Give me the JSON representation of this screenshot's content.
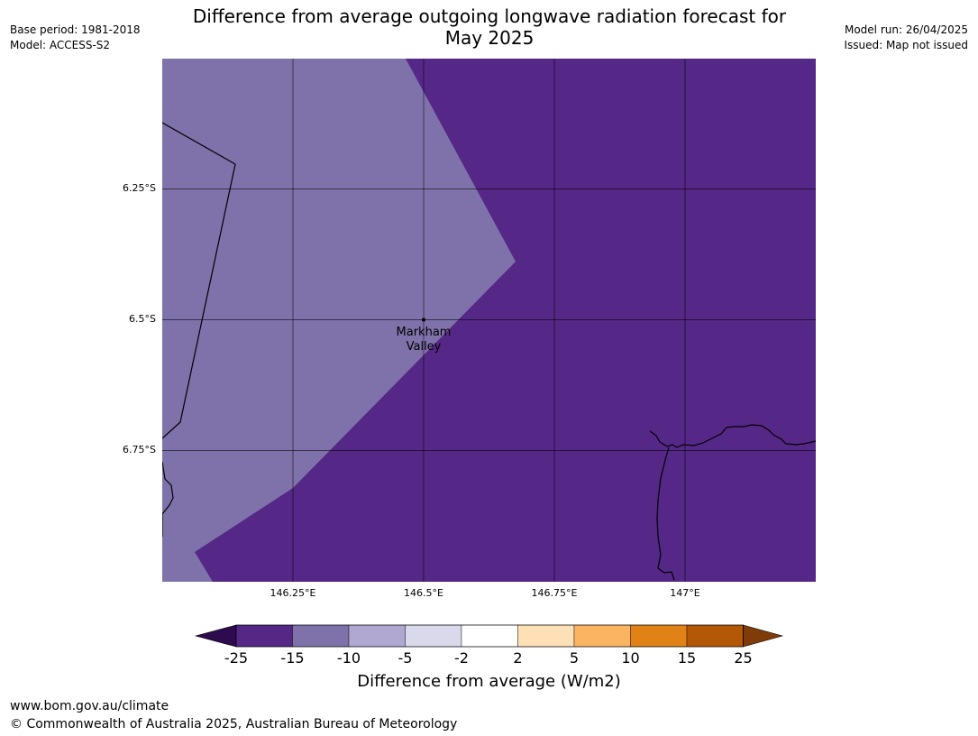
{
  "header": {
    "title_line1": "Difference from average outgoing longwave radiation forecast for",
    "title_line2": "May 2025",
    "base_period": "Base period: 1981-2018",
    "model": "Model: ACCESS-S2",
    "model_run": "Model run: 26/04/2025",
    "issued": "Issued: Map not issued"
  },
  "map": {
    "lat_labels": [
      "6.25°S",
      "6.5°S",
      "6.75°S"
    ],
    "lon_labels": [
      "146.25°E",
      "146.5°E",
      "146.75°E",
      "147°E"
    ],
    "place_label_line1": "Markham",
    "place_label_line2": "Valley",
    "colors": {
      "category_minus_15_to_minus_10": "#7f72aa",
      "category_minus_25_to_minus_15": "#552787"
    }
  },
  "colorbar": {
    "ticks": [
      "-25",
      "-15",
      "-10",
      "-5",
      "-2",
      "2",
      "5",
      "10",
      "15",
      "25"
    ],
    "colors": [
      "#2e0a4f",
      "#552787",
      "#7f72aa",
      "#b0a8d1",
      "#d9d9eb",
      "#ffffff",
      "#fee0b6",
      "#fbb562",
      "#e08215",
      "#b35806",
      "#7f3b08"
    ],
    "label": "Difference from average (W/m2)"
  },
  "footer": {
    "url": "www.bom.gov.au/climate",
    "copyright": "© Commonwealth of Australia 2025, Australian Bureau of Meteorology"
  }
}
